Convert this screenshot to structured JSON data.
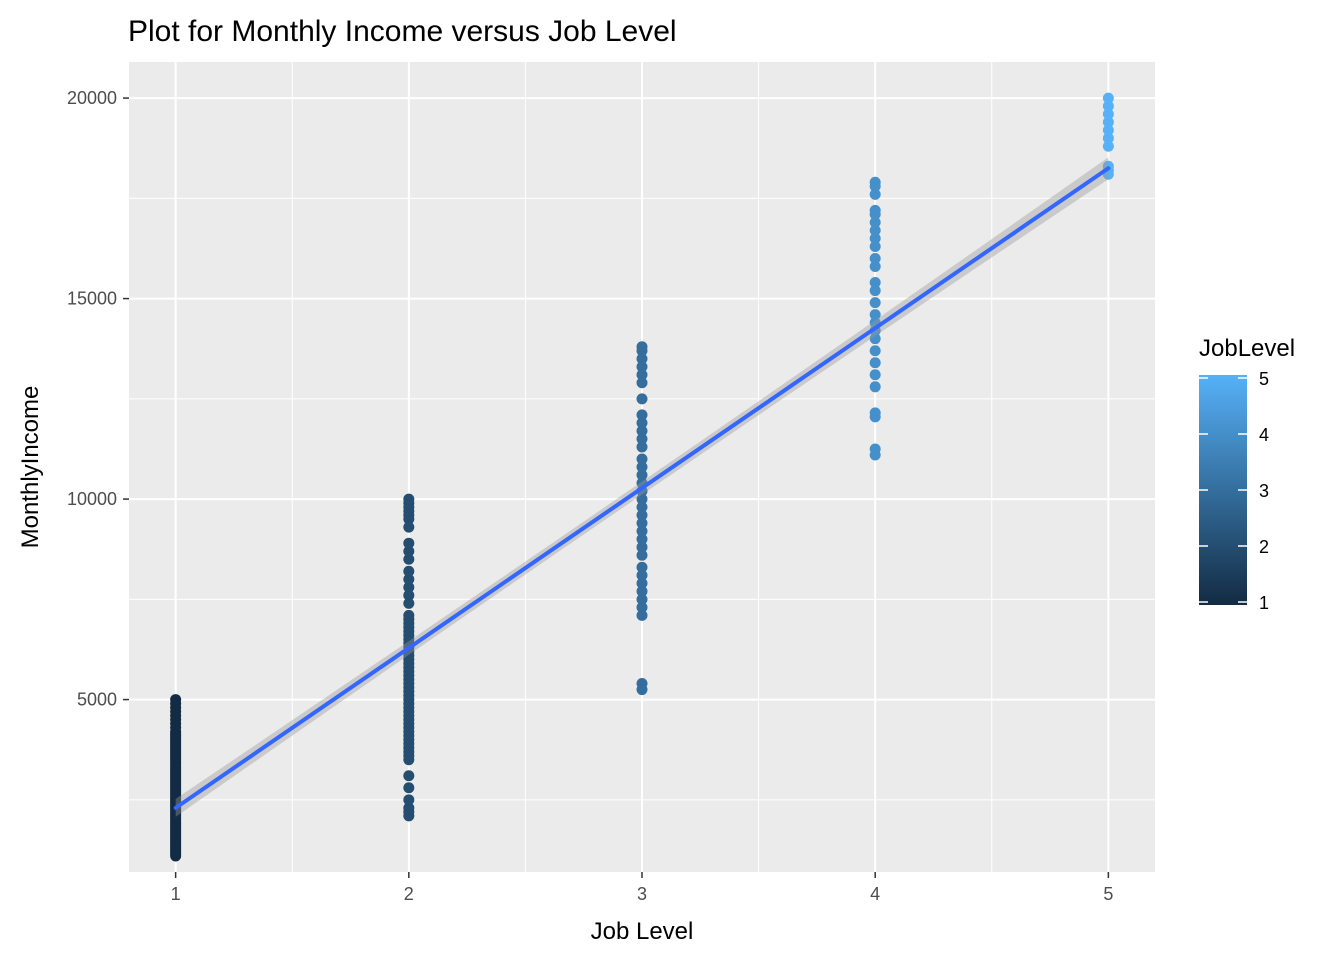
{
  "chart_data": {
    "type": "scatter",
    "title": "Plot for Monthly Income versus Job Level",
    "xlabel": "Job Level",
    "ylabel": "MonthlyIncome",
    "xlim": [
      0.8,
      5.2
    ],
    "ylim": [
      700,
      20900
    ],
    "x_ticks": [
      1,
      2,
      3,
      4,
      5
    ],
    "x_tick_labels": [
      "1",
      "2",
      "3",
      "4",
      "5"
    ],
    "y_ticks": [
      5000,
      10000,
      15000,
      20000
    ],
    "y_tick_labels": [
      "5000",
      "10000",
      "15000",
      "20000"
    ],
    "grid": true,
    "panel_background": "#ebebeb",
    "legend": {
      "title": "JobLevel",
      "placement": "right",
      "type": "colorbar",
      "low": 1,
      "high": 5,
      "low_color": "#132b43",
      "high_color": "#56b1f7",
      "tick_labels": [
        "1",
        "2",
        "3",
        "4",
        "5"
      ]
    },
    "points": [
      {
        "x": 1,
        "y": [
          1100,
          1150,
          1200,
          1250,
          1300,
          1350,
          1400,
          1450,
          1500,
          1550,
          1600,
          1650,
          1700,
          1750,
          1800,
          1850,
          1900,
          1950,
          2000,
          2050,
          2100,
          2150,
          2200,
          2250,
          2300,
          2350,
          2400,
          2450,
          2500,
          2550,
          2600,
          2650,
          2700,
          2750,
          2800,
          2850,
          2900,
          2950,
          3000,
          3050,
          3100,
          3150,
          3200,
          3250,
          3300,
          3350,
          3400,
          3450,
          3500,
          3550,
          3600,
          3650,
          3700,
          3750,
          3800,
          3850,
          3900,
          3950,
          4000,
          4050,
          4100,
          4150,
          4200,
          4300,
          4400,
          4500,
          4600,
          4700,
          4800,
          4900,
          5000
        ]
      },
      {
        "x": 2,
        "y": [
          2100,
          2200,
          2300,
          2500,
          2800,
          3100,
          3500,
          3600,
          3700,
          3800,
          3900,
          4000,
          4100,
          4200,
          4300,
          4400,
          4500,
          4600,
          4700,
          4800,
          4900,
          5000,
          5100,
          5200,
          5300,
          5400,
          5500,
          5600,
          5700,
          5800,
          5900,
          6000,
          6100,
          6200,
          6300,
          6400,
          6500,
          6600,
          6700,
          6800,
          6900,
          7000,
          7100,
          7400,
          7600,
          7800,
          8000,
          8200,
          8500,
          8700,
          8900,
          9300,
          9500,
          9600,
          9700,
          9800,
          9900,
          10000
        ]
      },
      {
        "x": 3,
        "y": [
          5250,
          5400,
          7100,
          7300,
          7500,
          7700,
          7900,
          8100,
          8300,
          8600,
          8800,
          9000,
          9200,
          9400,
          9600,
          9800,
          10000,
          10200,
          10400,
          10600,
          10800,
          11000,
          11300,
          11500,
          11700,
          11900,
          12100,
          12500,
          12900,
          13100,
          13300,
          13500,
          13700,
          13800
        ]
      },
      {
        "x": 4,
        "y": [
          11100,
          11250,
          12050,
          12150,
          12800,
          13100,
          13400,
          13700,
          14000,
          14200,
          14400,
          14600,
          14900,
          15200,
          15400,
          15800,
          16000,
          16300,
          16500,
          16700,
          16900,
          17100,
          17200,
          17600,
          17800,
          17900
        ]
      },
      {
        "x": 5,
        "y": [
          18100,
          18200,
          18300,
          18800,
          19000,
          19200,
          19400,
          19600,
          19800,
          20000
        ]
      }
    ],
    "trend_line": {
      "type": "linear",
      "x": [
        1,
        5
      ],
      "y": [
        2300,
        18250
      ],
      "color": "#3366ff",
      "se_band": true
    }
  }
}
